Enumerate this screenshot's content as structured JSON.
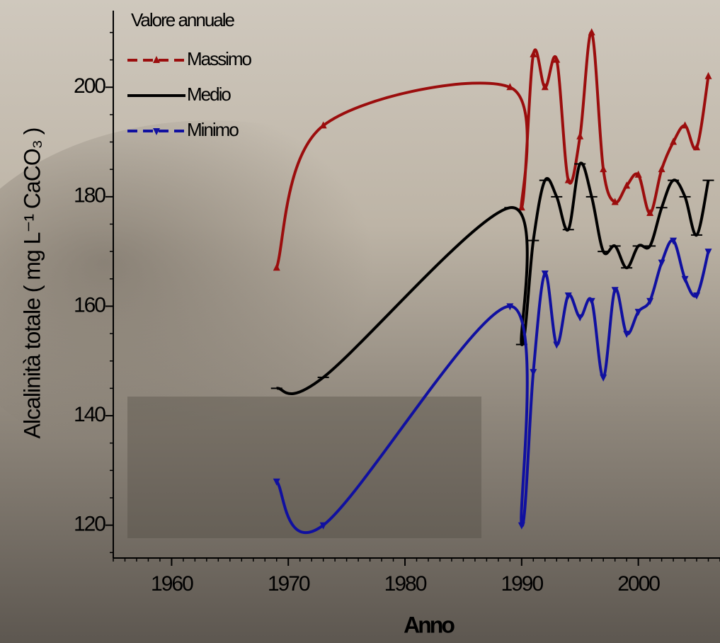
{
  "chart_data": {
    "type": "line",
    "xlabel": "Anno",
    "ylabel": "Alcalinità totale ( mg L⁻¹ CaCO₃ )",
    "legend_title": "Valore annuale",
    "legend": "upper-left",
    "xlim": [
      1955,
      2007
    ],
    "xticks": [
      1960,
      1970,
      1980,
      1990,
      2000
    ],
    "ylim": [
      114,
      214
    ],
    "yticks": [
      120,
      140,
      160,
      180,
      200
    ],
    "series": [
      {
        "name": "Massimo",
        "color": "#9b0d0d",
        "marker": "triangle-up",
        "x": [
          1969,
          1973,
          1989,
          1990,
          1991,
          1992,
          1993,
          1994,
          1995,
          1996,
          1997,
          1998,
          1999,
          2000,
          2001,
          2002,
          2003,
          2004,
          2005,
          2006
        ],
        "values": [
          167,
          193,
          200,
          178,
          206,
          200,
          205,
          183,
          191,
          210,
          185,
          179,
          182,
          184,
          177,
          185,
          190,
          193,
          189,
          202
        ]
      },
      {
        "name": "Medio",
        "color": "#000000",
        "marker": "dash",
        "x": [
          1969,
          1973,
          1989,
          1990,
          1991,
          1992,
          1993,
          1994,
          1995,
          1996,
          1997,
          1998,
          1999,
          2000,
          2001,
          2002,
          2003,
          2004,
          2005,
          2006
        ],
        "values": [
          145,
          147,
          178,
          153,
          172,
          183,
          180,
          174,
          186,
          180,
          170,
          171,
          167,
          171,
          171,
          178,
          183,
          180,
          173,
          183
        ]
      },
      {
        "name": "Minimo",
        "color": "#1010a0",
        "marker": "triangle-down",
        "x": [
          1969,
          1973,
          1989,
          1990,
          1991,
          1992,
          1993,
          1994,
          1995,
          1996,
          1997,
          1998,
          1999,
          2000,
          2001,
          2002,
          2003,
          2004,
          2005,
          2006
        ],
        "values": [
          128,
          120,
          160,
          120,
          148,
          166,
          153,
          162,
          158,
          161,
          147,
          163,
          155,
          159,
          161,
          168,
          172,
          165,
          162,
          170
        ]
      }
    ]
  }
}
